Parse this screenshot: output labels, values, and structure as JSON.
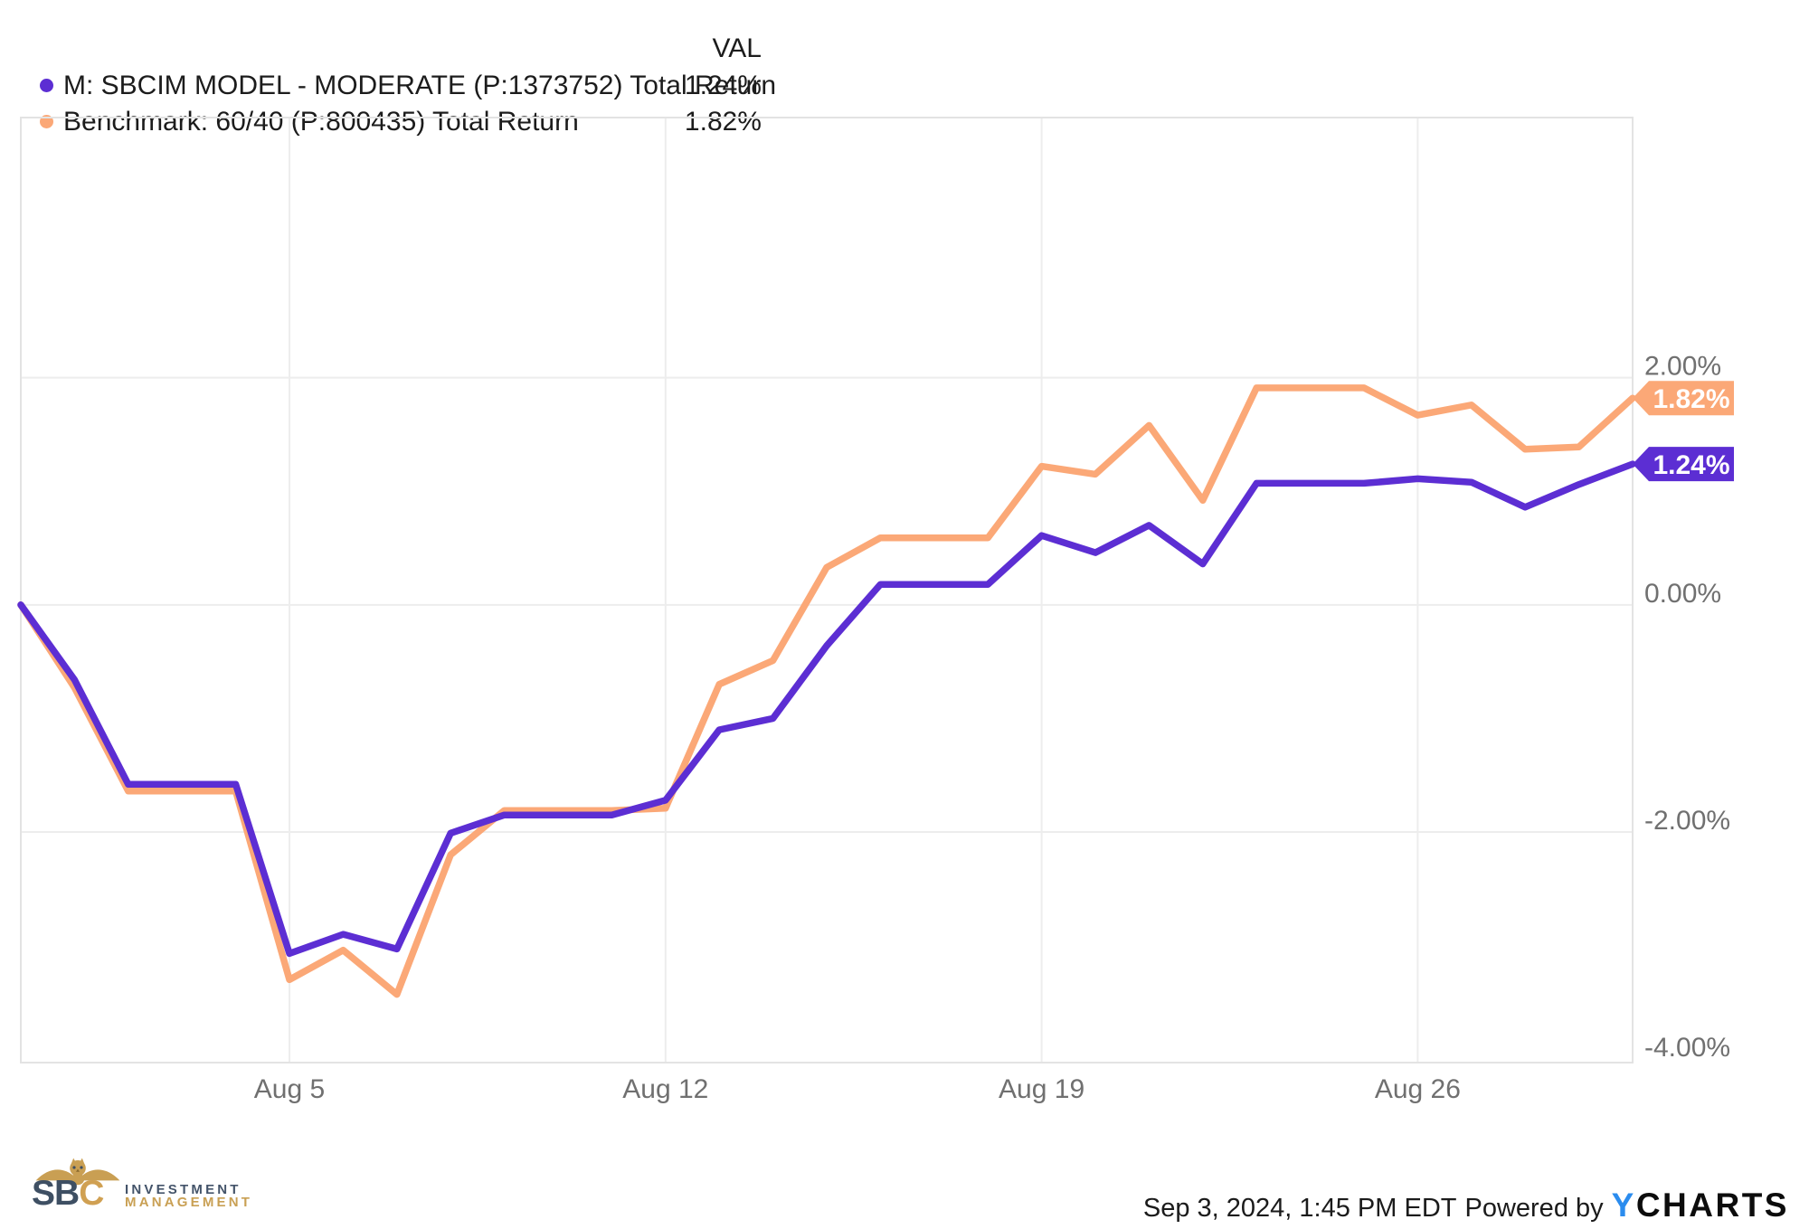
{
  "legend": {
    "header": "VAL",
    "items": [
      {
        "label": "M: SBCIM MODEL - MODERATE (P:1373752) Total Return",
        "value": "1.24%",
        "color": "#5C2ED3"
      },
      {
        "label": "Benchmark: 60/40 (P:800435) Total Return",
        "value": "1.82%",
        "color": "#FBA877"
      }
    ]
  },
  "chart_data": {
    "type": "line",
    "title": "",
    "xlabel": "",
    "ylabel": "",
    "unit": "%",
    "grid": true,
    "legend_position": "top-left",
    "ylim": [
      -4.03,
      4.29
    ],
    "x": [
      "Jul 31",
      "Aug 1",
      "Aug 2",
      "Aug 3",
      "Aug 4",
      "Aug 5",
      "Aug 6",
      "Aug 7",
      "Aug 8",
      "Aug 9",
      "Aug 10",
      "Aug 11",
      "Aug 12",
      "Aug 13",
      "Aug 14",
      "Aug 15",
      "Aug 16",
      "Aug 17",
      "Aug 18",
      "Aug 19",
      "Aug 20",
      "Aug 21",
      "Aug 22",
      "Aug 23",
      "Aug 24",
      "Aug 25",
      "Aug 26",
      "Aug 27",
      "Aug 28",
      "Aug 29",
      "Aug 30"
    ],
    "x_ticks": [
      {
        "index": 5,
        "label": "Aug 5"
      },
      {
        "index": 12,
        "label": "Aug 12"
      },
      {
        "index": 19,
        "label": "Aug 19"
      },
      {
        "index": 26,
        "label": "Aug 26"
      }
    ],
    "y_ticks": [
      {
        "value": 2,
        "label": "2.00%",
        "gridline": true
      },
      {
        "value": 0,
        "label": "0.00%",
        "gridline": true
      },
      {
        "value": -2,
        "label": "-2.00%",
        "gridline": true
      },
      {
        "value": -4,
        "label": "-4.00%",
        "gridline": false
      }
    ],
    "series": [
      {
        "key": "benchmark",
        "name": "Benchmark: 60/40 (P:800435) Total Return",
        "color": "#FBA877",
        "end_label": "1.82%",
        "values": [
          0.0,
          -0.73,
          -1.64,
          -1.64,
          -1.64,
          -3.3,
          -3.04,
          -3.43,
          -2.2,
          -1.81,
          -1.81,
          -1.81,
          -1.79,
          -0.7,
          -0.49,
          0.33,
          0.59,
          0.59,
          0.59,
          1.22,
          1.15,
          1.58,
          0.92,
          1.91,
          1.91,
          1.91,
          1.67,
          1.76,
          1.37,
          1.39,
          1.82
        ]
      },
      {
        "key": "moderate",
        "name": "M: SBCIM MODEL - MODERATE (P:1373752) Total Return",
        "color": "#5C2ED3",
        "end_label": "1.24%",
        "values": [
          0.0,
          -0.66,
          -1.58,
          -1.58,
          -1.58,
          -3.07,
          -2.9,
          -3.03,
          -2.01,
          -1.85,
          -1.85,
          -1.85,
          -1.72,
          -1.1,
          -1.0,
          -0.36,
          0.18,
          0.18,
          0.18,
          0.61,
          0.46,
          0.7,
          0.36,
          1.07,
          1.07,
          1.07,
          1.11,
          1.08,
          0.86,
          1.06,
          1.24
        ]
      }
    ],
    "colors": {
      "gridline": "#ededed",
      "border": "#e3e3e3",
      "tick_text": "#707070",
      "flag_text": "#ffffff"
    }
  },
  "footer": {
    "logo": {
      "wordmark_sb": "SB",
      "wordmark_c": "C",
      "line1": "INVESTMENT",
      "line2": "MANAGEMENT"
    },
    "timestamp": "Sep 3, 2024, 1:45 PM EDT",
    "powered_by": "Powered by",
    "ycharts_y": "Y",
    "ycharts_rest": "CHARTS"
  }
}
